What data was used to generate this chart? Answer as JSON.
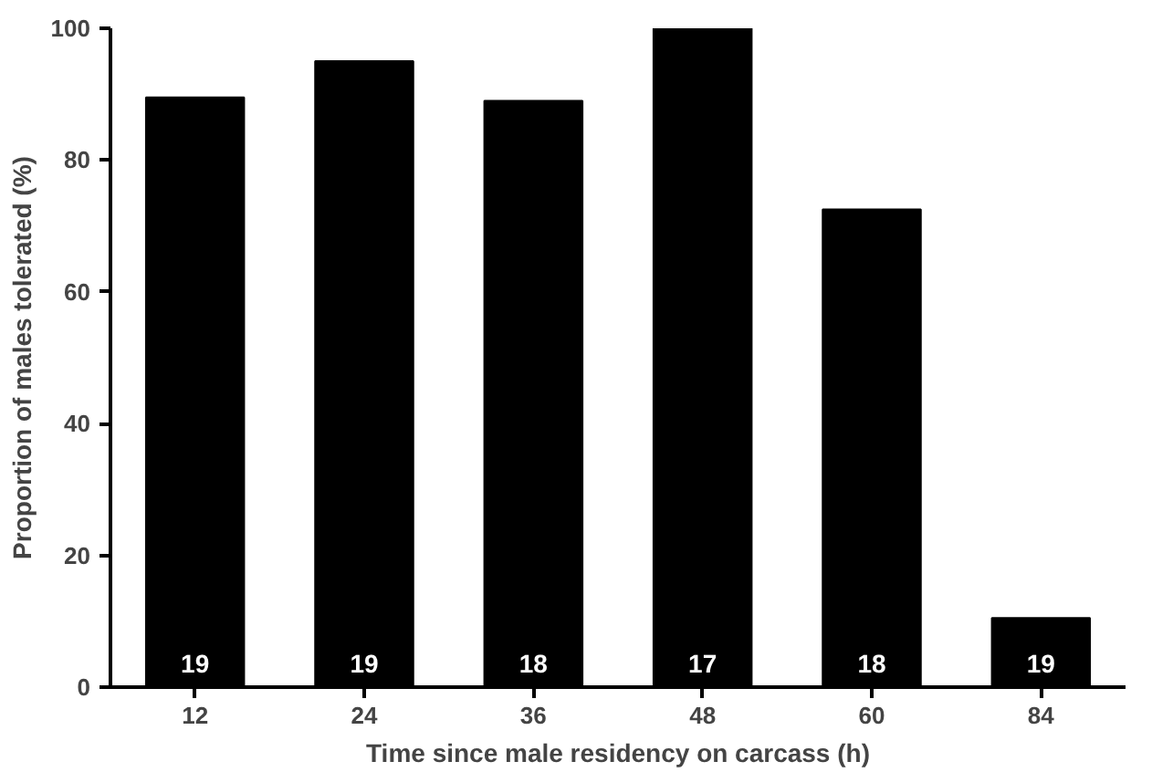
{
  "chart_data": {
    "type": "bar",
    "xlabel": "Time since male residency on carcass (h)",
    "ylabel": "Proportion of males tolerated (%)",
    "categories": [
      "12",
      "24",
      "36",
      "48",
      "60",
      "84"
    ],
    "values": [
      89.5,
      95,
      89,
      100,
      72.5,
      10.5
    ],
    "color": "#000000",
    "ylim": [
      0,
      100
    ],
    "yticks": [
      0,
      20,
      40,
      60,
      80,
      100
    ],
    "grid": false,
    "annotations": [
      "19",
      "19",
      "18",
      "17",
      "18",
      "19"
    ]
  }
}
